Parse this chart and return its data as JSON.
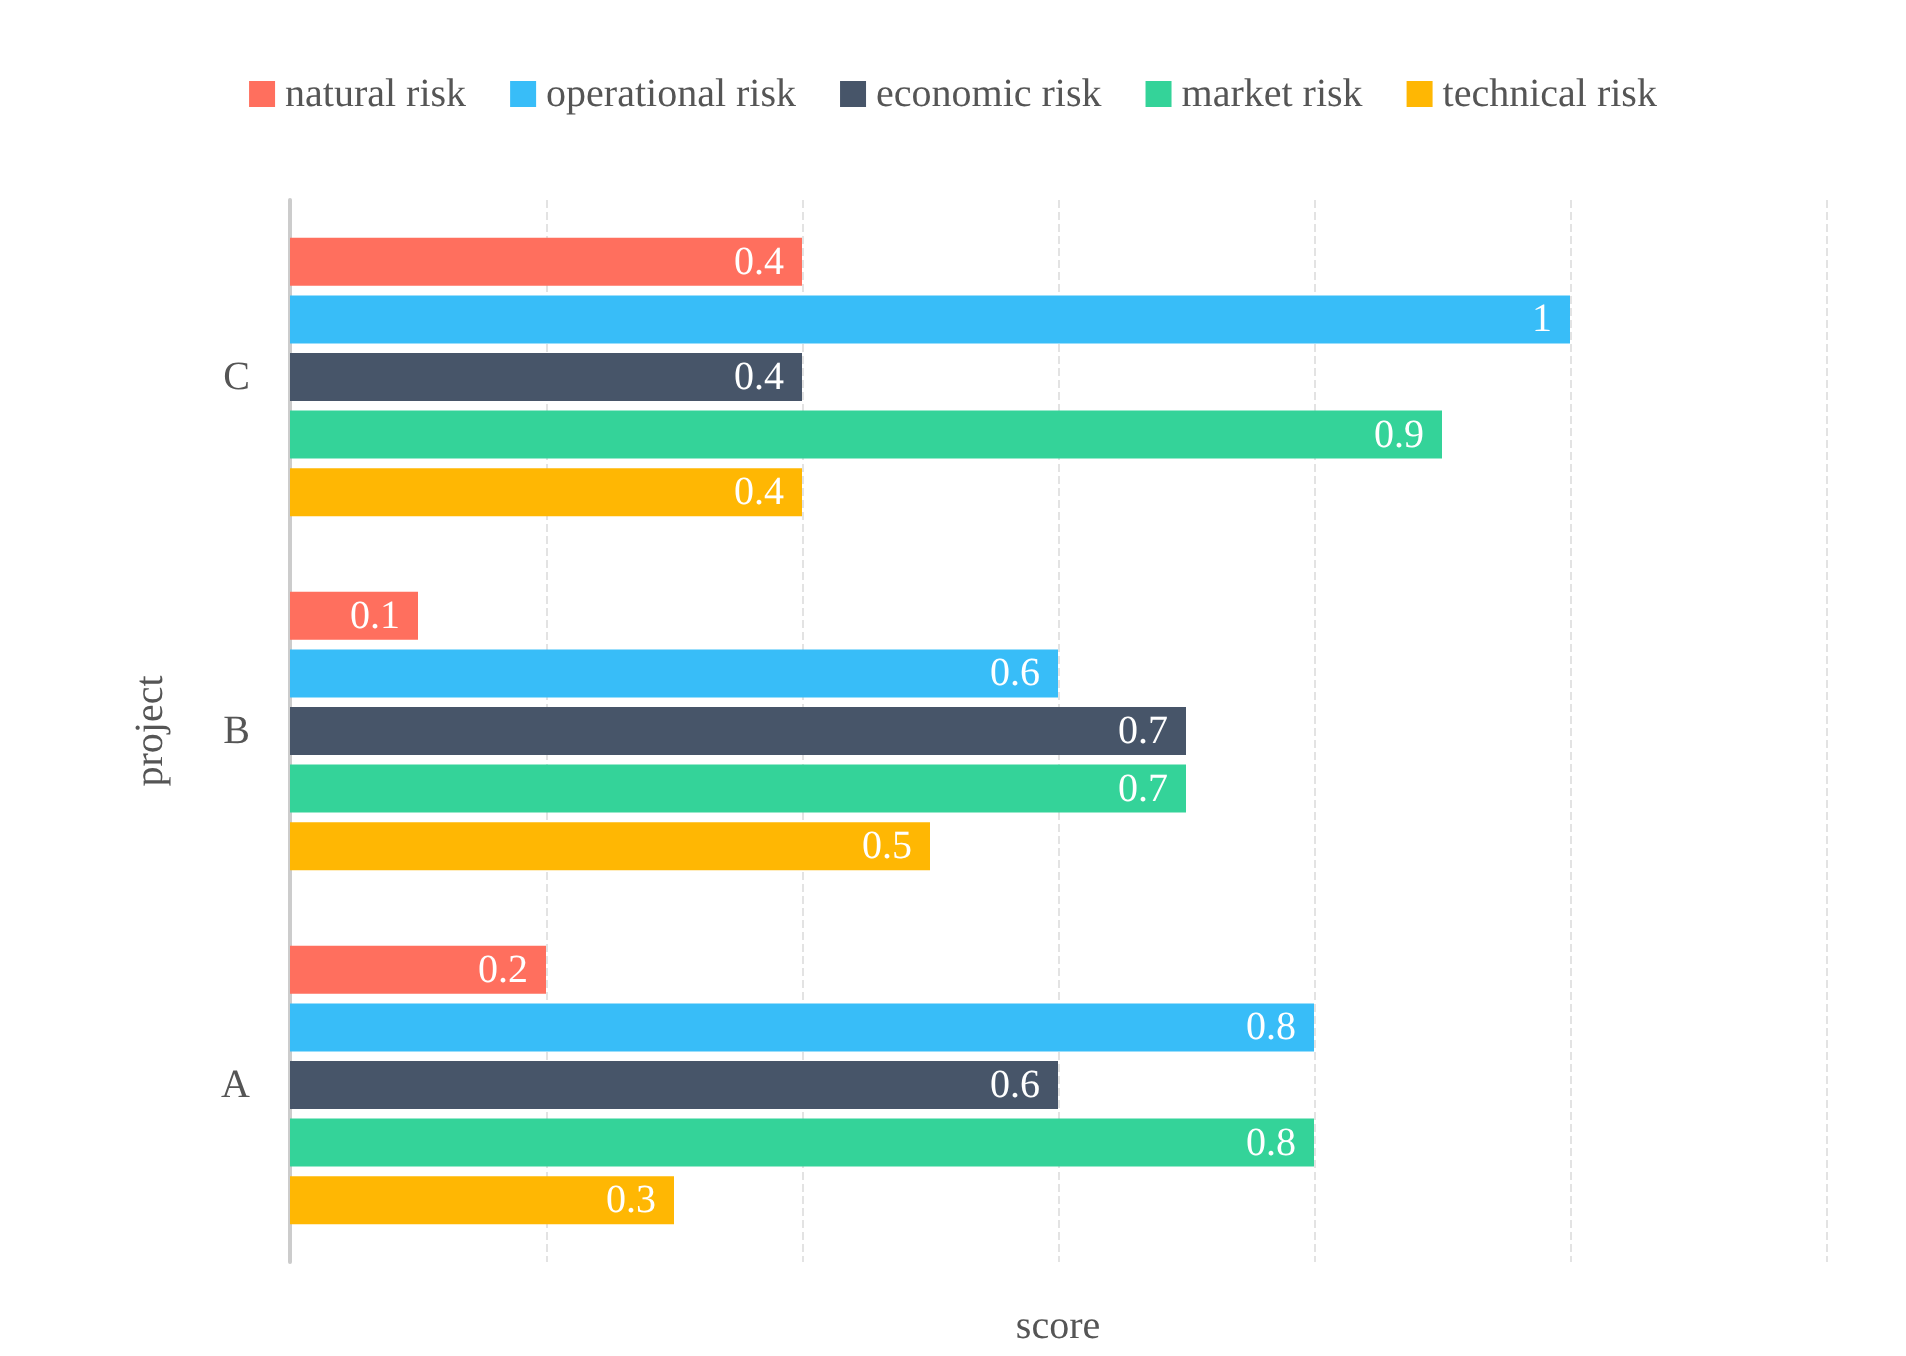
{
  "chart_data": {
    "type": "bar",
    "orientation": "horizontal",
    "xlabel": "score",
    "ylabel": "project",
    "categories": [
      "C",
      "B",
      "A"
    ],
    "series": [
      {
        "name": "natural risk",
        "color": "#ff6f5e",
        "values": [
          0.4,
          0.1,
          0.2
        ]
      },
      {
        "name": "operational risk",
        "color": "#38bdf8",
        "values": [
          1,
          0.6,
          0.8
        ]
      },
      {
        "name": "economic risk",
        "color": "#475569",
        "values": [
          0.4,
          0.7,
          0.6
        ]
      },
      {
        "name": "market risk",
        "color": "#34d399",
        "values": [
          0.9,
          0.7,
          0.8
        ]
      },
      {
        "name": "technical risk",
        "color": "#ffb703",
        "values": [
          0.4,
          0.5,
          0.3
        ]
      }
    ],
    "xlim": [
      0,
      1.2
    ],
    "xticks": [
      {
        "value": 0,
        "label": null
      },
      {
        "value": 0.2,
        "label": null
      },
      {
        "value": 0.4,
        "label": null
      },
      {
        "value": 0.6,
        "label": null
      },
      {
        "value": 0.8,
        "label": null
      },
      {
        "value": 1,
        "label": null
      },
      {
        "value": 1.2,
        "label": null
      }
    ],
    "tick_labels": "y",
    "grid": "x",
    "legend": "top",
    "data_labels": true
  }
}
